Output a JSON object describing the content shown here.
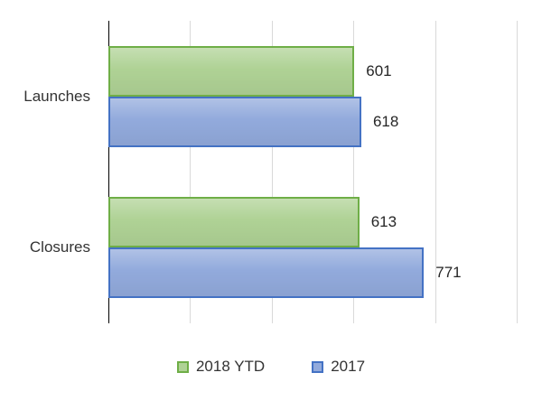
{
  "chart_data": {
    "type": "bar",
    "orientation": "horizontal",
    "title": "",
    "categories": [
      "Launches",
      "Closures"
    ],
    "series": [
      {
        "name": "2018 YTD",
        "values": [
          601,
          613
        ],
        "fill_color": "#afd295",
        "border_color": "#6fae47"
      },
      {
        "name": "2017",
        "values": [
          618,
          771
        ],
        "fill_color": "#92aadc",
        "border_color": "#4472c4"
      }
    ],
    "data_labels": true,
    "xlim": [
      0,
      1000
    ],
    "grid_interval": 200,
    "grid": true,
    "gridline_color": "#d9d9d9",
    "axis_color": "#000000",
    "text_color": "#333333",
    "background_color": "#ffffff",
    "legend_position": "bottom"
  }
}
